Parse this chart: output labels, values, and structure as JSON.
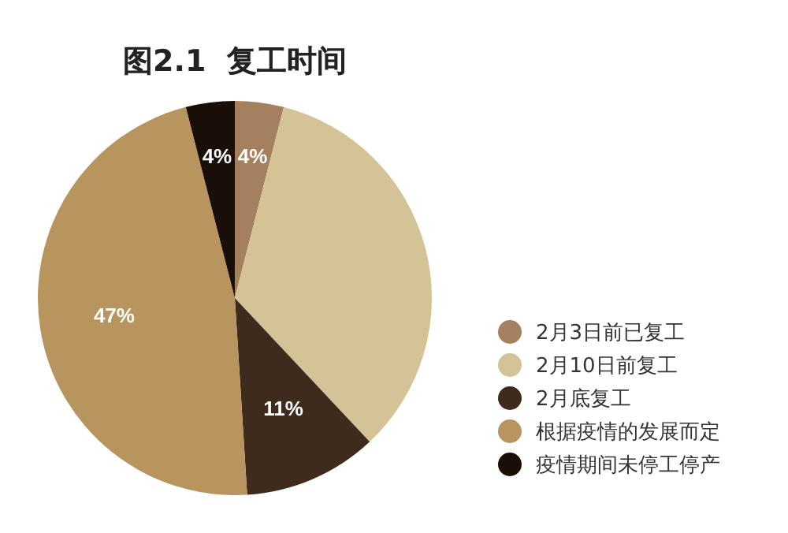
{
  "chart_data": {
    "type": "pie",
    "title": "图2.1  复工时间",
    "categories": [
      "2月3日前已复工",
      "2月10日前复工",
      "2月底复工",
      "根据疫情的发展而定",
      "疫情期间未停工停产"
    ],
    "values": [
      4,
      34,
      11,
      47,
      4
    ],
    "value_labels": [
      "4%",
      null,
      "11%",
      "47%",
      "4%"
    ],
    "colors": [
      "#a5805f",
      "#d3c396",
      "#3f2a1e",
      "#b8955e",
      "#1a0e08"
    ],
    "legend": "right"
  }
}
